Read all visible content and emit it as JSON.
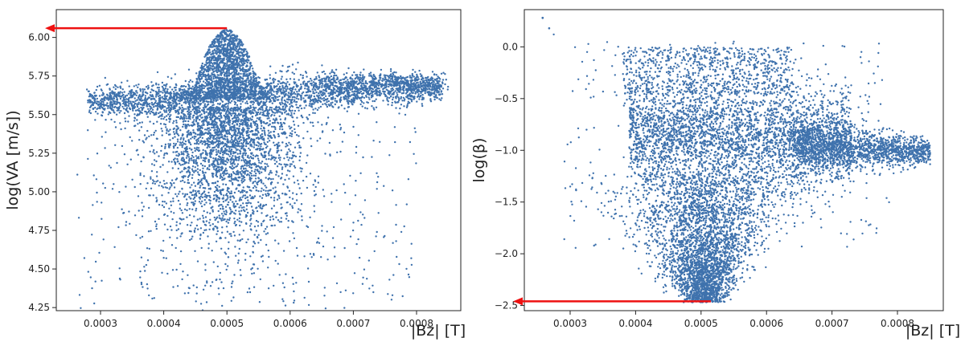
{
  "chart_data": [
    {
      "type": "scatter",
      "xlabel": "|Bz| [T]",
      "ylabel": "log(VA [m/s])",
      "xlim": [
        0.00023,
        0.00087
      ],
      "ylim": [
        4.23,
        6.18
      ],
      "xticks": [
        {
          "value": 0.0003,
          "label": "0.0003"
        },
        {
          "value": 0.0004,
          "label": "0.0004"
        },
        {
          "value": 0.0005,
          "label": "0.0005"
        },
        {
          "value": 0.0006,
          "label": "0.0006"
        },
        {
          "value": 0.0007,
          "label": "0.0007"
        },
        {
          "value": 0.0008,
          "label": "0.0008"
        }
      ],
      "yticks": [
        {
          "value": 4.25,
          "label": "4.25"
        },
        {
          "value": 4.5,
          "label": "4.50"
        },
        {
          "value": 4.75,
          "label": "4.75"
        },
        {
          "value": 5.0,
          "label": "5.00"
        },
        {
          "value": 5.25,
          "label": "5.25"
        },
        {
          "value": 5.5,
          "label": "5.50"
        },
        {
          "value": 5.75,
          "label": "5.75"
        },
        {
          "value": 6.0,
          "label": "6.00"
        }
      ],
      "point_color": "#3f72ad",
      "approx_density_regions": [
        {
          "x_range": [
            0.00028,
            0.00084
          ],
          "y_range": [
            5.52,
            5.78
          ],
          "density": "dense"
        },
        {
          "x_range": [
            0.00046,
            0.00053
          ],
          "y_range": [
            5.78,
            6.05
          ],
          "density": "dense"
        },
        {
          "x_range": [
            0.00044,
            0.00058
          ],
          "y_range": [
            4.55,
            5.5
          ],
          "density": "medium"
        },
        {
          "x_range": [
            0.00026,
            0.00079
          ],
          "y_range": [
            4.33,
            5.6
          ],
          "density": "sparse"
        }
      ],
      "annotation": {
        "type": "arrow",
        "color": "#ee1111",
        "from": {
          "x": 0.0005,
          "y": 6.06
        },
        "to_axis": "y"
      }
    },
    {
      "type": "scatter",
      "xlabel": "|Bz| [T]",
      "ylabel": "log(β)",
      "xlim": [
        0.00023,
        0.00087
      ],
      "ylim": [
        -2.55,
        0.36
      ],
      "xticks": [
        {
          "value": 0.0003,
          "label": "0.0003"
        },
        {
          "value": 0.0004,
          "label": "0.0004"
        },
        {
          "value": 0.0005,
          "label": "0.0005"
        },
        {
          "value": 0.0006,
          "label": "0.0006"
        },
        {
          "value": 0.0007,
          "label": "0.0007"
        },
        {
          "value": 0.0008,
          "label": "0.0008"
        }
      ],
      "yticks": [
        {
          "value": -2.5,
          "label": "−2.5"
        },
        {
          "value": -2.0,
          "label": "−2.0"
        },
        {
          "value": -1.5,
          "label": "−1.5"
        },
        {
          "value": -1.0,
          "label": "−1.0"
        },
        {
          "value": -0.5,
          "label": "−0.5"
        },
        {
          "value": 0.0,
          "label": "0.0"
        }
      ],
      "point_color": "#3f72ad",
      "approx_density_regions": [
        {
          "x_range": [
            0.00039,
            0.00072
          ],
          "y_range": [
            -1.3,
            -0.4
          ],
          "density": "dense"
        },
        {
          "x_range": [
            0.00069,
            0.00085
          ],
          "y_range": [
            -1.25,
            -0.9
          ],
          "density": "dense"
        },
        {
          "x_range": [
            0.00047,
            0.00052
          ],
          "y_range": [
            -2.47,
            -1.3
          ],
          "density": "dense"
        },
        {
          "x_range": [
            0.00029,
            0.00078
          ],
          "y_range": [
            -1.9,
            0.28
          ],
          "density": "sparse"
        }
      ],
      "annotation": {
        "type": "arrow",
        "color": "#ee1111",
        "from": {
          "x": 0.000515,
          "y": -2.46
        },
        "to_axis": "y"
      }
    }
  ]
}
